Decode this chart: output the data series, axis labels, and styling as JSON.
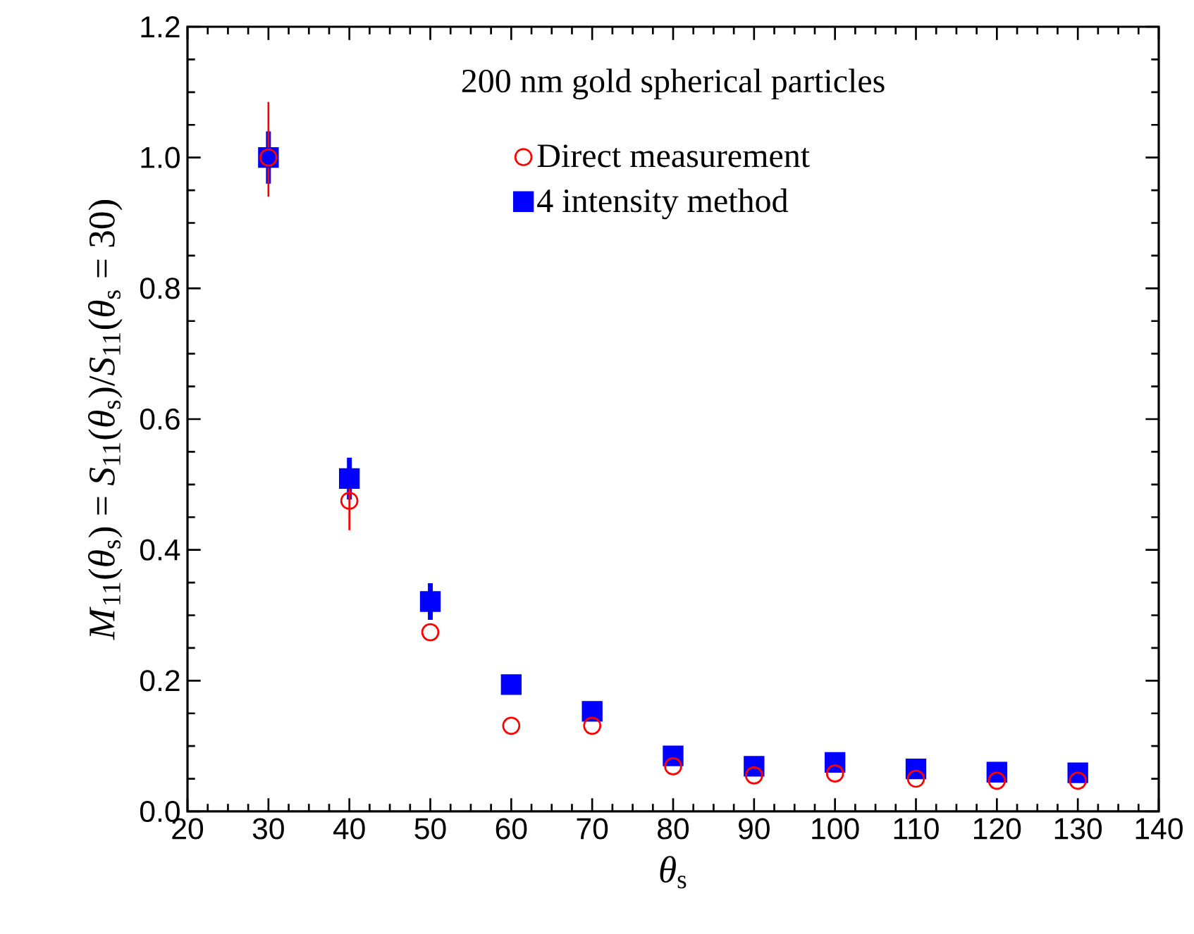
{
  "chart_data": {
    "type": "scatter",
    "xlabel": "*θ*$_{s}$",
    "ylabel": "*M*$_{11}$(*θ*$_{s}$) = *S*$_{11}$(*θ*$_{s}$)/*S*$_{11}$(*θ*$_{s}$ = 30)",
    "annotations": [
      "200 nm gold spherical particles"
    ],
    "x": [
      30,
      40,
      50,
      60,
      70,
      80,
      90,
      100,
      110,
      120,
      130
    ],
    "series": [
      {
        "name": "Direct measurement",
        "color": "#ff0000",
        "marker": "circle",
        "values": [
          1.0,
          0.475,
          0.274,
          0.131,
          0.131,
          0.069,
          0.055,
          0.058,
          0.05,
          0.047,
          0.047
        ],
        "errors": [
          [
            0.94,
            1.085
          ],
          0.045,
          null,
          null,
          null,
          null,
          null,
          null,
          null,
          null,
          null
        ]
      },
      {
        "name": "4 intensity method",
        "color": "#0000ff",
        "marker": "square",
        "values": [
          1.0,
          0.509,
          0.321,
          0.194,
          0.153,
          0.085,
          0.069,
          0.075,
          0.065,
          0.06,
          0.059
        ],
        "errors": [
          0.04,
          0.032,
          0.028,
          null,
          null,
          null,
          null,
          null,
          null,
          null,
          null
        ]
      }
    ],
    "xlim": [
      20,
      140
    ],
    "xticks": [
      20,
      30,
      40,
      50,
      60,
      70,
      80,
      90,
      100,
      110,
      120,
      130,
      140
    ],
    "ylim": [
      0,
      1.2
    ],
    "yticks": [
      {
        "value": 0,
        "label": "0.0"
      },
      0.2,
      0.4,
      0.6,
      0.8,
      {
        "value": 1,
        "label": "1.0"
      },
      1.2
    ],
    "legend": "top",
    "grid": false
  }
}
